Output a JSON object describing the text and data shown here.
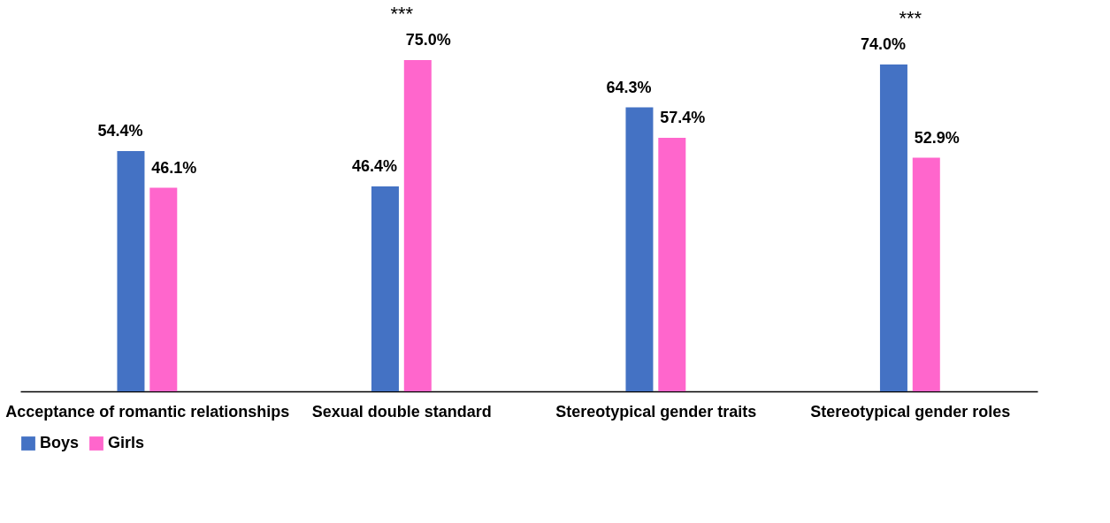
{
  "chart_data": {
    "type": "bar",
    "categories": [
      "Acceptance of romantic relationships",
      "Sexual double standard",
      "Stereotypical gender traits",
      "Stereotypical gender roles"
    ],
    "series": [
      {
        "name": "Boys",
        "color": "#4472c4",
        "values": [
          54.4,
          46.4,
          64.3,
          74.0
        ],
        "value_labels": [
          "54.4%",
          "46.4%",
          "64.3%",
          "74.0%"
        ]
      },
      {
        "name": "Girls",
        "color": "#ff66cc",
        "values": [
          46.1,
          75.0,
          57.4,
          52.9
        ],
        "value_labels": [
          "46.1%",
          "75.0%",
          "57.4%",
          "52.9%"
        ]
      }
    ],
    "annotations": [
      {
        "text": "***",
        "x": "Sexual double standard",
        "y": 75.0
      },
      {
        "text": "***",
        "x": "Stereotypical gender roles",
        "y": 74.0
      }
    ],
    "legend": "bottom",
    "grid": false
  }
}
